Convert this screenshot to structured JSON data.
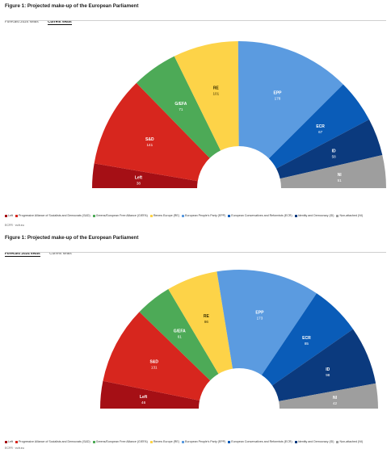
{
  "figures": [
    {
      "title": "Figure 1: Projected make-up of the European Parliament",
      "tabs": [
        {
          "label": "Forecast 2024 seats",
          "active": false
        },
        {
          "label": "Current seats",
          "active": true
        }
      ],
      "source": "ECFR · ecfr.eu"
    },
    {
      "title": "Figure 1: Projected make-up of the European Parliament",
      "tabs": [
        {
          "label": "Forecast 2024 seats",
          "active": true
        },
        {
          "label": "Current seats",
          "active": false
        }
      ],
      "source": "ECFR · ecfr.eu"
    }
  ],
  "legend": [
    {
      "label": "Left",
      "color": "#a50f15"
    },
    {
      "label": "Progressive Alliance of Socialists and Democrats (S&D)",
      "color": "#d7261e"
    },
    {
      "label": "Greens/European Free Alliance (G/EFA)",
      "color": "#4daa57"
    },
    {
      "label": "Renew Europe (RE)",
      "color": "#fdd348"
    },
    {
      "label": "European People's Party (EPP)",
      "color": "#5b9be0"
    },
    {
      "label": "European Conservatives and Reformists (ECR)",
      "color": "#0a5cb8"
    },
    {
      "label": "Identity and Democracy (ID)",
      "color": "#0b3a7e"
    },
    {
      "label": "Non-attached (NI)",
      "color": "#9e9e9e"
    }
  ],
  "chart_data": [
    {
      "type": "pie",
      "subtype": "parliament-semicircle",
      "categories": [
        "Left",
        "S&D",
        "G/EFA",
        "RE",
        "EPP",
        "ECR",
        "ID",
        "NI"
      ],
      "values": [
        38,
        141,
        71,
        101,
        178,
        67,
        58,
        51
      ],
      "colors": [
        "#a50f15",
        "#d7261e",
        "#4daa57",
        "#fdd348",
        "#5b9be0",
        "#0a5cb8",
        "#0b3a7e",
        "#9e9e9e"
      ]
    },
    {
      "type": "pie",
      "subtype": "parliament-semicircle",
      "categories": [
        "Left",
        "S&D",
        "G/EFA",
        "RE",
        "EPP",
        "ECR",
        "ID",
        "NI"
      ],
      "values": [
        46,
        131,
        61,
        86,
        173,
        85,
        98,
        42
      ],
      "colors": [
        "#a50f15",
        "#d7261e",
        "#4daa57",
        "#fdd348",
        "#5b9be0",
        "#0a5cb8",
        "#0b3a7e",
        "#9e9e9e"
      ]
    }
  ]
}
